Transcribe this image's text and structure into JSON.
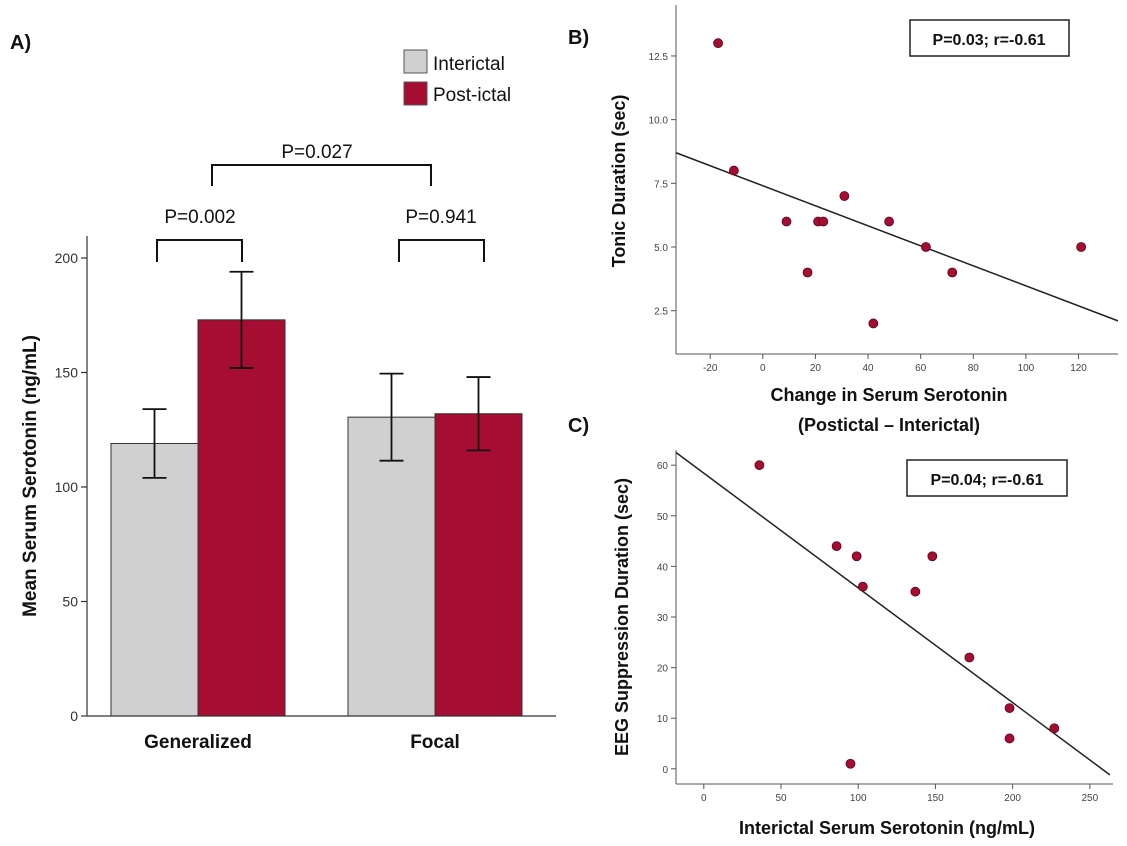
{
  "figure": {
    "panel_a_label": "A)",
    "panel_b_label": "B)",
    "panel_c_label": "C)"
  },
  "colors": {
    "interictal": "#d0d0d0",
    "postictal": "#a50d32",
    "point": "#a50d32",
    "line": "#222222"
  },
  "chart_data": [
    {
      "panel": "A",
      "type": "bar",
      "ylabel": "Mean Serum Serotonin (ng/mL)",
      "xlabel": "",
      "categories": [
        "Generalized",
        "Focal"
      ],
      "ylim": [
        0,
        200
      ],
      "yticks": [
        "0",
        "50",
        "100",
        "150",
        "200"
      ],
      "series": [
        {
          "name": "Interictal",
          "values": [
            119,
            130.5
          ],
          "error": [
            15,
            19
          ]
        },
        {
          "name": "Post-ictal",
          "values": [
            173,
            132
          ],
          "error": [
            21,
            16
          ]
        }
      ],
      "legend": {
        "position": "top-right",
        "entries": [
          "Interictal",
          "Post-ictal"
        ]
      },
      "annotations": [
        {
          "text": "P=0.002",
          "category": "Generalized"
        },
        {
          "text": "P=0.941",
          "category": "Focal"
        },
        {
          "text": "P=0.027",
          "category": "between groups"
        }
      ],
      "grid": false
    },
    {
      "panel": "B",
      "type": "scatter",
      "xlabel": "Change in Serum Serotonin",
      "xlabel2": "(Postictal – Interictal)",
      "ylabel": "Tonic Duration (sec)",
      "xlim": [
        -33,
        135
      ],
      "ylim": [
        0.8,
        14.5
      ],
      "xticks": [
        "-20",
        "0",
        "20",
        "40",
        "60",
        "80",
        "100",
        "120"
      ],
      "yticks": [
        "2.5",
        "5.0",
        "7.5",
        "10.0",
        "12.5"
      ],
      "points": [
        [
          -17,
          13
        ],
        [
          -11,
          8
        ],
        [
          9,
          6
        ],
        [
          21,
          6
        ],
        [
          23,
          6
        ],
        [
          17,
          4
        ],
        [
          31,
          7
        ],
        [
          42,
          2
        ],
        [
          48,
          6
        ],
        [
          62,
          5
        ],
        [
          72,
          4
        ],
        [
          121,
          5
        ]
      ],
      "fit_line": [
        [
          -33,
          8.7
        ],
        [
          135,
          2.1
        ]
      ],
      "annotation": "P=0.03; r=-0.61",
      "grid": false
    },
    {
      "panel": "C",
      "type": "scatter",
      "xlabel": "Interictal Serum Serotonin (ng/mL)",
      "ylabel": "EEG Suppression Duration (sec)",
      "xlim": [
        -18,
        265
      ],
      "ylim": [
        -3,
        63
      ],
      "xticks": [
        "0",
        "50",
        "100",
        "150",
        "200",
        "250"
      ],
      "yticks": [
        "0",
        "10",
        "20",
        "30",
        "40",
        "50",
        "60"
      ],
      "points": [
        [
          36,
          60
        ],
        [
          86,
          44
        ],
        [
          99,
          42
        ],
        [
          103,
          36
        ],
        [
          137,
          35
        ],
        [
          148,
          42
        ],
        [
          172,
          22
        ],
        [
          198,
          12
        ],
        [
          198,
          6
        ],
        [
          227,
          8
        ],
        [
          95,
          1
        ]
      ],
      "fit_line": [
        [
          -18,
          62.5
        ],
        [
          263,
          -1.2
        ]
      ],
      "annotation": "P=0.04; r=-0.61",
      "grid": false
    }
  ]
}
